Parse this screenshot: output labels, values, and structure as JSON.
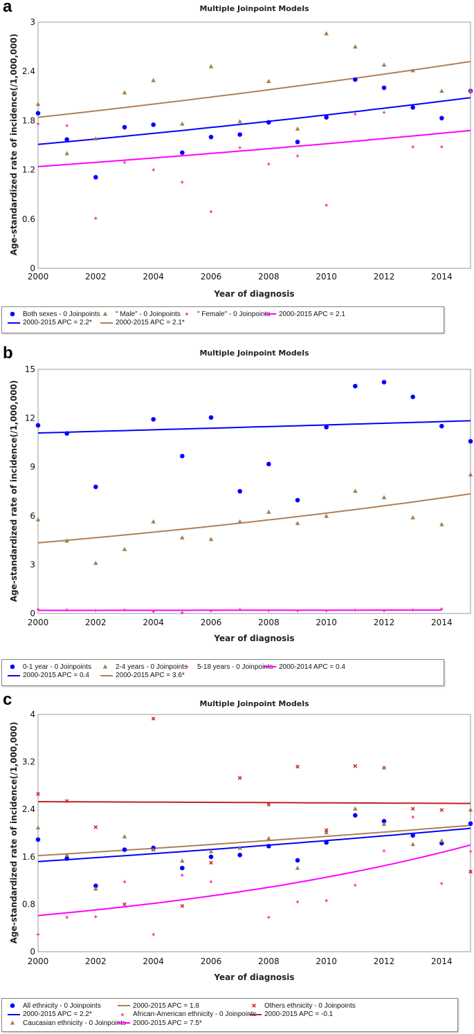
{
  "chart_data": [
    {
      "panel_label": "a",
      "type": "scatter",
      "title": "Multiple Joinpoint Models",
      "xlabel": "Year of diagnosis",
      "ylabel": "Age-standardized rate of incidence(/1,000,000)",
      "xlim": [
        2000,
        2015
      ],
      "ylim": [
        0,
        3
      ],
      "xticks": [
        2000,
        2002,
        2004,
        2006,
        2008,
        2010,
        2012,
        2014
      ],
      "yticks": [
        0,
        0.6,
        1.2,
        1.8,
        2.4,
        3
      ],
      "x": [
        2000,
        2001,
        2002,
        2003,
        2004,
        2005,
        2006,
        2007,
        2008,
        2009,
        2010,
        2011,
        2012,
        2013,
        2014,
        2015
      ],
      "series": [
        {
          "name": "Both sexes - 0 Joinpoints",
          "marker": "circle",
          "color": "#0000ff",
          "values": [
            1.89,
            1.57,
            1.11,
            1.72,
            1.75,
            1.41,
            1.6,
            1.63,
            1.78,
            1.54,
            1.84,
            2.3,
            2.2,
            1.96,
            1.83,
            2.16
          ]
        },
        {
          "name": "\" Male\" - 0 Joinpoints",
          "marker": "triangle",
          "color": "#a87c50",
          "values": [
            2.0,
            1.4,
            1.58,
            2.14,
            2.29,
            1.76,
            2.46,
            1.79,
            2.28,
            1.7,
            2.86,
            2.7,
            2.48,
            2.41,
            2.16,
            2.16
          ]
        },
        {
          "name": "\" Female\" - 0 Joinpoints",
          "marker": "plus",
          "color": "#ff3399",
          "values": [
            1.76,
            1.74,
            0.61,
            1.29,
            1.2,
            1.05,
            0.69,
            1.47,
            1.27,
            1.37,
            0.77,
            1.88,
            1.9,
            1.48,
            1.48,
            2.16
          ]
        }
      ],
      "fits": [
        {
          "name": "2000-2015 APC  = 2.2*",
          "color": "#0000ff",
          "years": [
            2000,
            2015
          ],
          "values": [
            1.51,
            2.08
          ]
        },
        {
          "name": "2000-2015 APC  = 2.1*",
          "color": "#b07f55",
          "years": [
            2000,
            2015
          ],
          "values": [
            1.84,
            2.52
          ]
        },
        {
          "name": "2000-2015 APC  = 2.1",
          "color": "#ff00ff",
          "years": [
            2000,
            2015
          ],
          "values": [
            1.24,
            1.68
          ]
        }
      ],
      "legend": [
        {
          "kind": "marker",
          "marker": "circle",
          "color": "#0000ff",
          "label": "Both sexes - 0 Joinpoints"
        },
        {
          "kind": "marker",
          "marker": "triangle",
          "color": "#a87c50",
          "label": "\" Male\" - 0 Joinpoints"
        },
        {
          "kind": "marker",
          "marker": "plus",
          "color": "#ff3399",
          "label": "\" Female\" - 0 Joinpoints"
        },
        {
          "kind": "line",
          "color": "#ff00ff",
          "label": "2000-2015 APC  = 2.1"
        },
        {
          "kind": "line",
          "color": "#0000ff",
          "label": "2000-2015 APC  = 2.2*"
        },
        {
          "kind": "line",
          "color": "#b07f55",
          "label": "2000-2015 APC  = 2.1*"
        }
      ]
    },
    {
      "panel_label": "b",
      "type": "scatter",
      "title": "Multiple Joinpoint Models",
      "xlabel": "Year of diagnosis",
      "ylabel": "Age-standardized rate of incidence(/1,000,000)",
      "xlim": [
        2000,
        2015
      ],
      "ylim": [
        0,
        15
      ],
      "xticks": [
        2000,
        2002,
        2004,
        2006,
        2008,
        2010,
        2012,
        2014
      ],
      "yticks": [
        0,
        3,
        6,
        9,
        12,
        15
      ],
      "x": [
        2000,
        2001,
        2002,
        2003,
        2004,
        2005,
        2006,
        2007,
        2008,
        2009,
        2010,
        2011,
        2012,
        2013,
        2014,
        2015
      ],
      "series": [
        {
          "name": "0-1 year - 0 Joinpoints",
          "marker": "circle",
          "color": "#0000ff",
          "values": [
            11.56,
            11.06,
            7.78,
            null,
            11.93,
            9.67,
            12.04,
            7.51,
            9.18,
            6.96,
            11.45,
            13.97,
            14.21,
            13.31,
            11.51,
            10.58
          ]
        },
        {
          "name": "2-4 years - 0 Joinpoints",
          "marker": "triangle",
          "color": "#a87c50",
          "values": [
            5.77,
            4.46,
            3.09,
            3.94,
            5.64,
            4.66,
            4.56,
            5.64,
            6.23,
            5.54,
            5.98,
            7.52,
            7.13,
            5.89,
            5.47,
            8.53
          ]
        },
        {
          "name": "5-18 years - 0 Joinpoints",
          "marker": "plus",
          "color": "#ff3399",
          "values": [
            0.25,
            0.22,
            0.18,
            0.22,
            0.12,
            0.05,
            0.16,
            0.24,
            0.18,
            0.17,
            0.17,
            0.2,
            0.17,
            0.22,
            0.28,
            null
          ]
        }
      ],
      "fits": [
        {
          "name": "2000-2015 APC  = 0.4",
          "color": "#0000ff",
          "years": [
            2000,
            2015
          ],
          "values": [
            11.09,
            11.84
          ]
        },
        {
          "name": "2000-2015 APC  = 3.6*",
          "color": "#b07f55",
          "years": [
            2000,
            2015
          ],
          "values": [
            4.34,
            7.35
          ]
        },
        {
          "name": "2000-2014 APC  = 0.4",
          "color": "#ff00ff",
          "years": [
            2000,
            2014
          ],
          "values": [
            0.19,
            0.21
          ]
        }
      ],
      "legend": [
        {
          "kind": "marker",
          "marker": "circle",
          "color": "#0000ff",
          "label": "0-1 year - 0 Joinpoints"
        },
        {
          "kind": "marker",
          "marker": "triangle",
          "color": "#a87c50",
          "label": "2-4 years - 0 Joinpoints"
        },
        {
          "kind": "marker",
          "marker": "plus",
          "color": "#ff3399",
          "label": "5-18 years - 0 Joinpoints"
        },
        {
          "kind": "line",
          "color": "#ff00ff",
          "label": "2000-2014 APC  = 0.4"
        },
        {
          "kind": "line",
          "color": "#0000ff",
          "label": "2000-2015 APC  = 0.4"
        },
        {
          "kind": "line",
          "color": "#b07f55",
          "label": "2000-2015 APC  = 3.6*"
        }
      ]
    },
    {
      "panel_label": "c",
      "type": "scatter",
      "title": "Multiple Joinpoint Models",
      "xlabel": "Year of diagnosis",
      "ylabel": "Age-standardized rate of incidence(/1,000,000)",
      "xlim": [
        2000,
        2015
      ],
      "ylim": [
        0,
        4
      ],
      "xticks": [
        2000,
        2002,
        2004,
        2006,
        2008,
        2010,
        2012,
        2014
      ],
      "yticks": [
        0,
        0.8,
        1.6,
        2.4,
        3.2,
        4
      ],
      "x": [
        2000,
        2001,
        2002,
        2003,
        2004,
        2005,
        2006,
        2007,
        2008,
        2009,
        2010,
        2011,
        2012,
        2013,
        2014,
        2015
      ],
      "series": [
        {
          "name": "All ethnicity - 0 Joinpoints",
          "marker": "circle",
          "color": "#0000ff",
          "values": [
            1.89,
            1.57,
            1.11,
            1.72,
            1.75,
            1.41,
            1.6,
            1.63,
            1.78,
            1.54,
            1.84,
            2.3,
            2.2,
            1.96,
            1.83,
            2.16
          ]
        },
        {
          "name": "Caucasian ethnicity - 0 Joinpoints",
          "marker": "triangle",
          "color": "#a87c50",
          "values": [
            2.09,
            1.63,
            1.06,
            1.94,
            1.72,
            1.53,
            1.69,
            1.75,
            1.91,
            1.41,
            2.01,
            2.41,
            2.15,
            1.81,
            1.87,
            2.39
          ]
        },
        {
          "name": "African-American ethnicity - 0 Joinpoints",
          "marker": "plus",
          "color": "#ff3399",
          "values": [
            0.29,
            0.58,
            0.59,
            1.18,
            0.29,
            1.29,
            1.18,
            null,
            0.58,
            0.84,
            0.86,
            1.12,
            1.7,
            2.27,
            1.15,
            1.69
          ]
        },
        {
          "name": "Others ethnicity - 0 Joinpoints",
          "marker": "cross",
          "color": "#cc2222",
          "values": [
            2.66,
            2.54,
            2.1,
            0.8,
            3.93,
            0.77,
            1.5,
            2.93,
            2.48,
            3.12,
            2.05,
            3.13,
            3.1,
            2.41,
            2.39,
            1.35
          ]
        }
      ],
      "fits": [
        {
          "name": "2000-2015 APC  = 2.2*",
          "color": "#0000ff",
          "years": [
            2000,
            2015
          ],
          "values": [
            1.52,
            2.08
          ]
        },
        {
          "name": "2000-2015 APC  = 1.8",
          "color": "#b07f55",
          "years": [
            2000,
            2015
          ],
          "values": [
            1.62,
            2.13
          ]
        },
        {
          "name": "2000-2015 APC  = 7.5*",
          "color": "#ff00ff",
          "years": [
            2000,
            2015
          ],
          "values": [
            0.61,
            1.8
          ]
        },
        {
          "name": "2000-2015 APC  = -0.1",
          "color": "#c02020",
          "years": [
            2000,
            2015
          ],
          "values": [
            2.53,
            2.5
          ]
        }
      ],
      "legend": [
        {
          "kind": "marker",
          "marker": "circle",
          "color": "#0000ff",
          "label": "All ethnicity - 0 Joinpoints"
        },
        {
          "kind": "line",
          "color": "#0000ff",
          "label": "2000-2015 APC  = 2.2*"
        },
        {
          "kind": "marker",
          "marker": "triangle",
          "color": "#a87c50",
          "label": "Caucasian ethnicity - 0 Joinpoints"
        },
        {
          "kind": "line",
          "color": "#b07f55",
          "label": "2000-2015 APC  = 1.8"
        },
        {
          "kind": "marker",
          "marker": "plus",
          "color": "#ff3399",
          "label": "African-American ethnicity - 0 Joinpoints"
        },
        {
          "kind": "line",
          "color": "#ff00ff",
          "label": "2000-2015 APC  = 7.5*"
        },
        {
          "kind": "marker",
          "marker": "cross",
          "color": "#cc2222",
          "label": "Others ethnicity - 0 Joinpoints"
        },
        {
          "kind": "line",
          "color": "#c02020",
          "label": "2000-2015 APC  = -0.1"
        }
      ]
    }
  ]
}
